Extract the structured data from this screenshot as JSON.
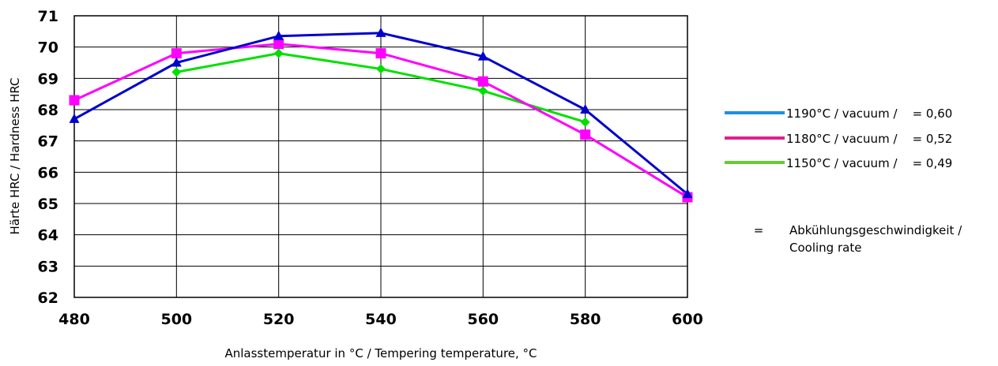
{
  "chart_data": {
    "type": "line",
    "title": "",
    "xlabel": "Anlasstemperatur in °C / Tempering temperature, °C",
    "ylabel": "Härte HRC / Hardness HRC",
    "x": [
      480,
      500,
      520,
      540,
      560,
      580,
      600
    ],
    "xlim": [
      480,
      600
    ],
    "ylim": [
      62,
      71
    ],
    "x_ticks": [
      "480",
      "500",
      "520",
      "540",
      "560",
      "580",
      "600"
    ],
    "y_ticks": [
      "62",
      "63",
      "64",
      "65",
      "66",
      "67",
      "68",
      "69",
      "70",
      "71"
    ],
    "grid": true,
    "legend_position": "right",
    "series": [
      {
        "name": "1190°C / vacuum /    = 0,60",
        "legend_color": "#1e90e0",
        "line_color": "#0000cc",
        "marker": "triangle",
        "x": [
          480,
          500,
          520,
          540,
          560,
          580,
          600
        ],
        "values": [
          67.7,
          69.5,
          70.35,
          70.45,
          69.7,
          68.0,
          65.3
        ]
      },
      {
        "name": "1180°C / vacuum /    = 0,52",
        "legend_color": "#e0208c",
        "line_color": "#ff00ff",
        "marker": "square",
        "x": [
          480,
          500,
          520,
          540,
          560,
          580,
          600
        ],
        "values": [
          68.3,
          69.8,
          70.1,
          69.8,
          68.9,
          67.2,
          65.2
        ]
      },
      {
        "name": "1150°C / vacuum /    = 0,49",
        "legend_color": "#66cc33",
        "line_color": "#00e000",
        "marker": "diamond",
        "x": [
          500,
          520,
          540,
          560,
          580
        ],
        "values": [
          69.2,
          69.8,
          69.3,
          68.6,
          67.6
        ]
      }
    ],
    "annotation": {
      "symbol": "=",
      "line1": "Abkühlungsgeschwindigkeit /",
      "line2": "Cooling rate"
    }
  }
}
